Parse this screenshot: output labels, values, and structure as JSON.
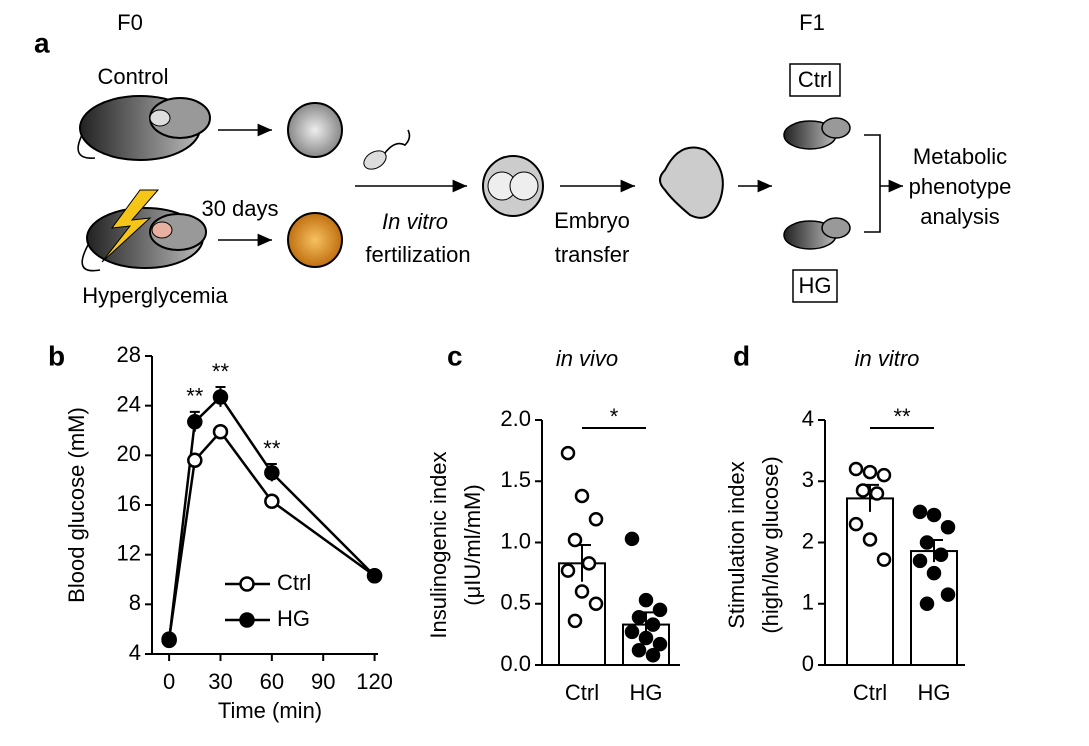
{
  "diagram": {
    "panel": "a",
    "f0": "F0",
    "f1": "F1",
    "control": "Control",
    "hyperglycemia": "Hyperglycemia",
    "duration": "30 days",
    "ivf": [
      "In vitro",
      "fertilization"
    ],
    "transfer": [
      "Embryo",
      "transfer"
    ],
    "groups": [
      "Ctrl",
      "HG"
    ],
    "outcome": [
      "Metabolic",
      "phenotype",
      "analysis"
    ]
  },
  "chart_data": [
    {
      "type": "line",
      "panel": "b",
      "ylabel": "Blood glucose (mM)",
      "xlabel": "Time (min)",
      "x": [
        0,
        15,
        30,
        60,
        120
      ],
      "xlim": [
        -10,
        122
      ],
      "xticks": [
        0,
        30,
        60,
        90,
        120
      ],
      "ylim": [
        4,
        28
      ],
      "yticks": [
        4,
        8,
        12,
        16,
        20,
        24,
        28
      ],
      "legend": "lower center",
      "series": [
        {
          "name": "Ctrl",
          "color": "#ffffff",
          "values": [
            5.2,
            19.6,
            21.9,
            16.3,
            10.3
          ],
          "errors": [
            0.3,
            0.3,
            0.3,
            0.3,
            0.3
          ]
        },
        {
          "name": "HG",
          "color": "#000000",
          "values": [
            5.1,
            22.7,
            24.7,
            18.6,
            10.3
          ],
          "errors": [
            0.3,
            0.8,
            0.8,
            0.7,
            0.3
          ]
        }
      ],
      "annotations": [
        {
          "x": 15,
          "text": "**"
        },
        {
          "x": 30,
          "text": "**"
        },
        {
          "x": 60,
          "text": "**"
        }
      ]
    },
    {
      "type": "bar",
      "panel": "c",
      "title": "in vivo",
      "ylabel": [
        "Insulinogenic index",
        "(μIU/ml/mM)"
      ],
      "categories": [
        "Ctrl",
        "HG"
      ],
      "values": [
        0.83,
        0.33
      ],
      "errors": [
        0.15,
        0.1
      ],
      "color": "#ffffff",
      "points": [
        [
          1.73,
          1.38,
          1.19,
          1.02,
          0.83,
          0.77,
          0.6,
          0.5,
          0.36
        ],
        [
          1.03,
          0.53,
          0.45,
          0.39,
          0.33,
          0.27,
          0.22,
          0.17,
          0.12,
          0.08
        ]
      ],
      "significance": "*",
      "ylim": [
        0,
        2
      ],
      "yticks": [
        {
          "value": 0,
          "label": "0.0"
        },
        {
          "value": 0.5,
          "label": "0.5"
        },
        {
          "value": 1,
          "label": "1.0"
        },
        {
          "value": 1.5,
          "label": "1.5"
        },
        {
          "value": 2,
          "label": "2.0"
        }
      ]
    },
    {
      "type": "bar",
      "panel": "d",
      "title": "in vitro",
      "ylabel": [
        "Stimulation index",
        "(high/low glucose)"
      ],
      "categories": [
        "Ctrl",
        "HG"
      ],
      "values": [
        2.72,
        1.86
      ],
      "errors": [
        0.22,
        0.18
      ],
      "color": "#ffffff",
      "points": [
        [
          3.2,
          3.15,
          3.1,
          2.85,
          2.8,
          2.3,
          2.05,
          1.72
        ],
        [
          2.5,
          2.45,
          2.25,
          2.0,
          1.8,
          1.7,
          1.5,
          1.15,
          1.0
        ]
      ],
      "significance": "**",
      "ylim": [
        0,
        4
      ],
      "yticks": [
        0,
        1,
        2,
        3,
        4
      ]
    }
  ]
}
